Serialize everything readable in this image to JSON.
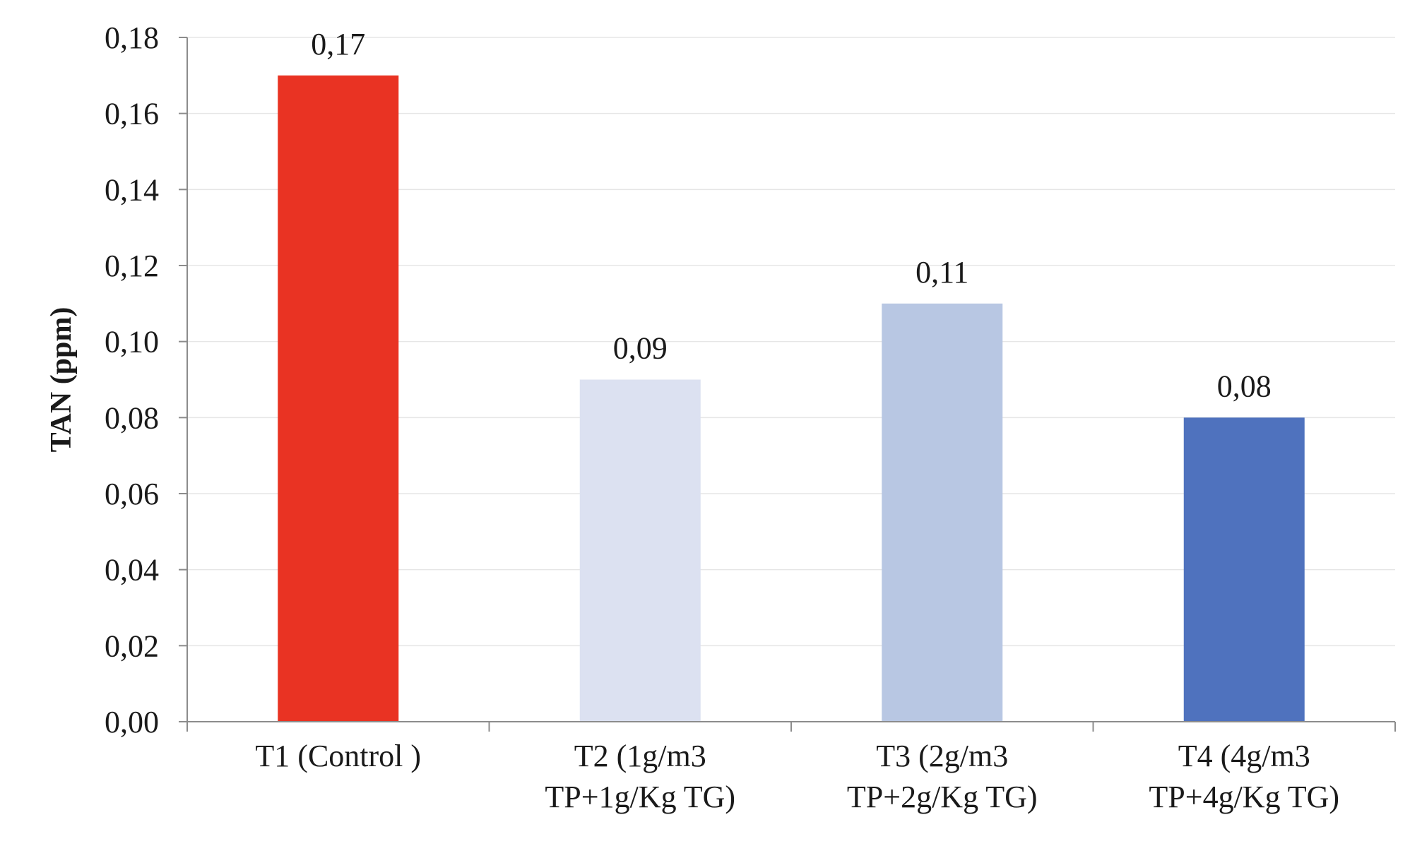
{
  "chart_data": {
    "type": "bar",
    "title": "",
    "xlabel": "",
    "ylabel": "TAN (ppm)",
    "ylim": [
      0,
      0.18
    ],
    "ytick_step": 0.02,
    "decimal_separator": ",",
    "grid": true,
    "legend": "none",
    "categories": [
      [
        "T1 (Control )"
      ],
      [
        "T2 (1g/m3",
        "TP+1g/Kg TG)"
      ],
      [
        "T3 (2g/m3",
        "TP+2g/Kg TG)"
      ],
      [
        "T4  (4g/m3",
        "TP+4g/Kg TG)"
      ]
    ],
    "values": [
      0.17,
      0.09,
      0.11,
      0.08
    ],
    "value_labels": [
      "0,17",
      "0,09",
      "0,11",
      "0,08"
    ],
    "bar_colors": [
      "#e93323",
      "#dce1f1",
      "#b8c7e3",
      "#4f72be"
    ]
  }
}
